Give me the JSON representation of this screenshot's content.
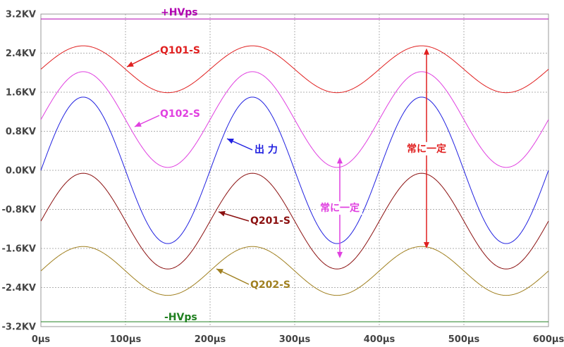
{
  "chart_data": {
    "type": "line",
    "x_unit": "µs",
    "y_unit": "KV",
    "xlim": [
      0,
      600
    ],
    "ylim": [
      -3.2,
      3.2
    ],
    "x_ticks": [
      "0µs",
      "100µs",
      "200µs",
      "300µs",
      "400µs",
      "500µs",
      "600µs"
    ],
    "y_ticks": [
      "3.2KV",
      "2.4KV",
      "1.6KV",
      "0.8KV",
      "0.0KV",
      "-0.8KV",
      "-1.6KV",
      "-2.4KV",
      "-3.2KV"
    ],
    "grid": true,
    "series": [
      {
        "name": "+HVps",
        "color": "#b000b0",
        "shape": "constant",
        "level": 3.1
      },
      {
        "name": "Q101-S",
        "color": "#e02020",
        "shape": "sine",
        "offset": 2.07,
        "amplitude": 0.48,
        "period_us": 200,
        "phase_deg": 0
      },
      {
        "name": "Q102-S",
        "color": "#e040e0",
        "shape": "sine",
        "offset": 1.04,
        "amplitude": 0.98,
        "period_us": 200,
        "phase_deg": 0
      },
      {
        "name": "出 力",
        "color": "#2020e0",
        "shape": "sine",
        "offset": 0.0,
        "amplitude": 1.5,
        "period_us": 200,
        "phase_deg": 0
      },
      {
        "name": "Q201-S",
        "color": "#8b1010",
        "shape": "sine",
        "offset": -1.04,
        "amplitude": 0.98,
        "period_us": 200,
        "phase_deg": 0
      },
      {
        "name": "Q202-S",
        "color": "#a08020",
        "shape": "sine",
        "offset": -2.06,
        "amplitude": 0.5,
        "period_us": 200,
        "phase_deg": 0
      },
      {
        "name": "-HVps",
        "color": "#208020",
        "shape": "constant",
        "level": -3.1
      }
    ],
    "annotations": [
      {
        "text": "常に一定",
        "color": "#e040e0",
        "x_us": 335,
        "y_from": 0.27,
        "y_to": -1.8
      },
      {
        "text": "常に一定",
        "color": "#e02020",
        "x_us": 435,
        "y_from": 2.5,
        "y_to": -1.6
      }
    ]
  }
}
